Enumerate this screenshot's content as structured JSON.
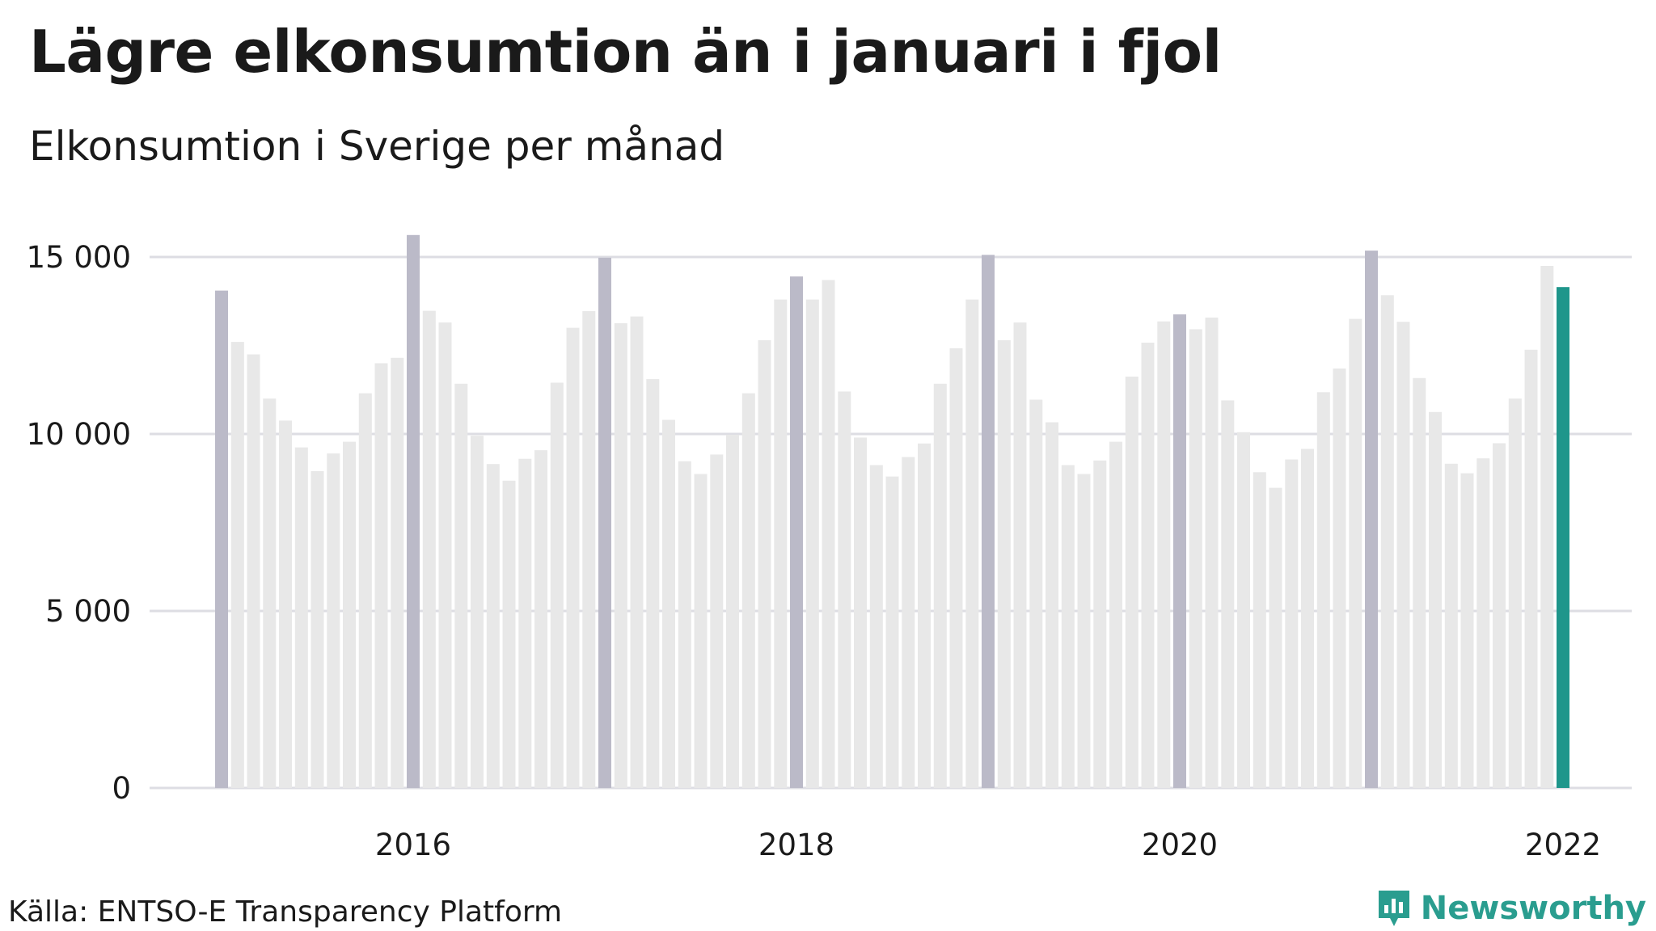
{
  "title": "Lägre elkonsumtion än i januari i fjol",
  "subtitle": "Elkonsumtion i Sverige per månad",
  "source": "Källa: ENTSO-E Transparency Platform",
  "brand": {
    "name": "Newsworthy",
    "icon": "newsworthy-logo-icon"
  },
  "colors": {
    "january": "#bbbac8",
    "other": "#e8e8e8",
    "latest": "#1f968b",
    "grid": "#dddde3"
  },
  "chart_data": {
    "type": "bar",
    "title": "Lägre elkonsumtion än i januari i fjol",
    "subtitle": "Elkonsumtion i Sverige per månad",
    "ylim": [
      0,
      15000
    ],
    "yticks": [
      0,
      5000,
      10000,
      15000
    ],
    "ytick_labels": [
      "0",
      "5 000",
      "10 000",
      "15 000"
    ],
    "xticks": [
      "2016",
      "2018",
      "2020",
      "2022"
    ],
    "grid": true,
    "start": "2015-01",
    "highlight": "january bars darker; latest month (2022-01) teal",
    "series": [
      {
        "year": 2015,
        "values": [
          14050,
          12600,
          12250,
          11000,
          10380,
          9620,
          8950,
          9450,
          9780,
          11150,
          12000,
          12150
        ]
      },
      {
        "year": 2016,
        "values": [
          15620,
          13480,
          13150,
          11420,
          9950,
          9150,
          8680,
          9300,
          9540,
          11450,
          13000,
          13470
        ]
      },
      {
        "year": 2017,
        "values": [
          14980,
          13130,
          13320,
          11550,
          10400,
          9230,
          8870,
          9420,
          9980,
          11150,
          12650,
          13800
        ]
      },
      {
        "year": 2018,
        "values": [
          14450,
          13800,
          14350,
          11200,
          9900,
          9120,
          8800,
          9350,
          9730,
          11420,
          12420,
          13800
        ]
      },
      {
        "year": 2019,
        "values": [
          15060,
          12650,
          13150,
          10970,
          10330,
          9120,
          8870,
          9250,
          9780,
          11620,
          12580,
          13180
        ]
      },
      {
        "year": 2020,
        "values": [
          13380,
          12960,
          13290,
          10950,
          10050,
          8920,
          8480,
          9280,
          9580,
          11180,
          11850,
          13250
        ]
      },
      {
        "year": 2021,
        "values": [
          15180,
          13920,
          13170,
          11580,
          10620,
          9160,
          8890,
          9310,
          9740,
          11000,
          12380,
          14750
        ]
      },
      {
        "year": 2022,
        "values": [
          14150
        ]
      }
    ]
  }
}
